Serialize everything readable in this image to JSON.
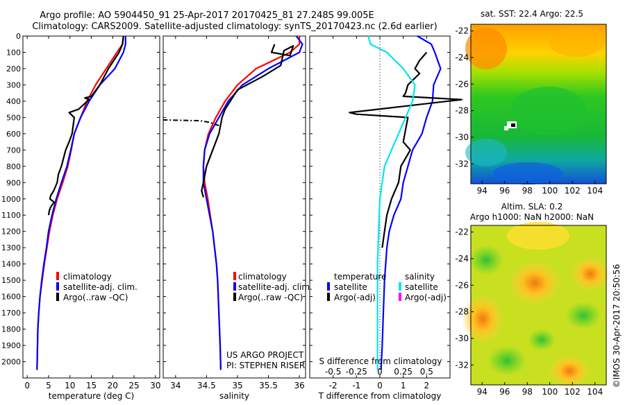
{
  "title_line1": "Argo profile: AO 5904450_91 25-Apr-2017 20170425_81 27.248S 99.005E",
  "title_line2": "Climatology: CARS2009. Satellite-adjusted climatology: synTS_20170423.nc (2.6d earlier)",
  "project_line1": "US ARGO PROJECT",
  "project_line2": "PI: STEPHEN RISER",
  "credit": "©IMOS 30-Apr-2017 20:50:56",
  "colors": {
    "climatology": "#ff0000",
    "satellite": "#0000ff",
    "argo": "#000000",
    "sal_satellite": "#00e5ee",
    "sal_argo": "#ff00ff"
  },
  "chart_data": [
    {
      "type": "line",
      "name": "temperature-profile",
      "xlabel": "temperature (deg C)",
      "xlim": [
        -1,
        31
      ],
      "ylim": [
        2100,
        0
      ],
      "xticks": [
        0,
        5,
        10,
        15,
        20,
        25,
        30
      ],
      "yticks": [
        0,
        100,
        200,
        300,
        400,
        500,
        600,
        700,
        800,
        900,
        1000,
        1100,
        1200,
        1300,
        1400,
        1500,
        1600,
        1700,
        1800,
        1900,
        2000
      ],
      "legend": [
        "climatology",
        "satellite-adj. clim.",
        "Argo(..raw -QC)"
      ],
      "series": [
        {
          "name": "climatology",
          "x": [
            22.5,
            22.3,
            21,
            18.5,
            16,
            14,
            12.5,
            11,
            10.3,
            9.5,
            8.3,
            7,
            6,
            5.2,
            4.6,
            4,
            3.5,
            3,
            2.7,
            2.5,
            2.3
          ],
          "y": [
            0,
            50,
            100,
            200,
            300,
            400,
            500,
            600,
            700,
            800,
            900,
            1000,
            1100,
            1200,
            1300,
            1400,
            1500,
            1600,
            1700,
            1800,
            2050
          ]
        },
        {
          "name": "satellite-adj. clim.",
          "x": [
            23,
            23,
            22.5,
            20.5,
            17,
            14.5,
            12.5,
            11,
            10.2,
            9.3,
            8,
            6.8,
            5.8,
            5,
            4.5,
            3.9,
            3.4,
            3,
            2.7,
            2.5,
            2.3
          ],
          "y": [
            0,
            50,
            100,
            200,
            300,
            400,
            500,
            600,
            700,
            800,
            900,
            1000,
            1100,
            1200,
            1300,
            1400,
            1500,
            1600,
            1700,
            1800,
            2050
          ]
        },
        {
          "name": "Argo(..raw -QC)",
          "x": [
            22.5,
            22.3,
            21.5,
            19,
            17,
            15,
            13.5,
            14.5,
            12,
            9.8,
            11,
            10.5,
            9.8,
            9,
            8,
            7.3,
            7,
            6.2,
            5.5,
            5.3,
            6.3,
            5.5,
            5.2,
            5
          ],
          "y": [
            0,
            50,
            100,
            200,
            300,
            370,
            380,
            390,
            450,
            470,
            500,
            600,
            650,
            700,
            800,
            850,
            900,
            950,
            980,
            1000,
            1020,
            1050,
            1070,
            1100
          ]
        }
      ]
    },
    {
      "type": "line",
      "name": "salinity-profile",
      "xlabel": "salinity",
      "xlim": [
        33.8,
        36.1
      ],
      "ylim": [
        2100,
        0
      ],
      "xticks": [
        34,
        34.5,
        35,
        35.5,
        36
      ],
      "legend": [
        "climatology",
        "satellite-adj. clim.",
        "Argo(..raw -QC)"
      ],
      "series": [
        {
          "name": "climatology",
          "x": [
            36,
            36,
            35.85,
            35.3,
            35,
            34.8,
            34.65,
            34.53,
            34.47,
            34.45,
            34.47,
            34.52,
            34.56,
            34.6,
            34.63,
            34.66,
            34.68,
            34.7,
            34.72,
            34.73
          ],
          "y": [
            0,
            50,
            100,
            200,
            300,
            400,
            500,
            600,
            700,
            800,
            900,
            1000,
            1100,
            1200,
            1300,
            1400,
            1500,
            1700,
            1900,
            2050
          ]
        },
        {
          "name": "satellite-adj. clim.",
          "x": [
            35.95,
            36.05,
            36,
            35.5,
            35.08,
            34.85,
            34.7,
            34.55,
            34.47,
            34.45,
            34.45,
            34.5,
            34.55,
            34.6,
            34.63,
            34.66,
            34.68,
            34.7,
            34.72,
            34.73
          ],
          "y": [
            0,
            50,
            100,
            200,
            300,
            400,
            500,
            600,
            700,
            800,
            900,
            1000,
            1100,
            1200,
            1300,
            1400,
            1500,
            1700,
            1900,
            2050
          ]
        },
        {
          "name": "Argo(..raw -QC)",
          "x": [
            35.6,
            35.55,
            35.85,
            35.9,
            35.75,
            35.7,
            35.4,
            35,
            34.8,
            34.75,
            34.7,
            34.6,
            34.5,
            34.45,
            34.42,
            34.45
          ],
          "y": [
            50,
            100,
            120,
            60,
            90,
            180,
            250,
            330,
            450,
            500,
            600,
            700,
            800,
            900,
            950,
            990
          ]
        },
        {
          "name": "Argo(..raw -QC) dashed",
          "x": [
            34.7,
            34.55,
            34.4,
            33.8
          ],
          "y": [
            550,
            530,
            520,
            515
          ]
        }
      ]
    },
    {
      "type": "line",
      "name": "difference-profile",
      "xlabel": "T difference from climatology",
      "x2label": "S difference from climatology",
      "xlim": [
        -3,
        3
      ],
      "ylim": [
        2100,
        0
      ],
      "xticks": [
        -2,
        -1,
        0,
        1,
        2
      ],
      "x2ticks": [
        "-0.5",
        "-0.25",
        "0",
        "0.25",
        "0.5"
      ],
      "legend_headers": [
        "temperature",
        "salinity"
      ],
      "legend": [
        "satellite",
        "Argo(-adj)",
        "satellite",
        "Argo(-adj)"
      ],
      "series": [
        {
          "name": "T satellite",
          "x": [
            1.6,
            2.2,
            2.35,
            2.6,
            2.3,
            2.25,
            2.0,
            1.8,
            1.4,
            1.2,
            1.0,
            0.9,
            0.6,
            0.4,
            0.3,
            0.25,
            0.2,
            0.15,
            0.1,
            0.05
          ],
          "y": [
            0,
            50,
            100,
            200,
            300,
            400,
            500,
            600,
            700,
            800,
            900,
            1000,
            1100,
            1200,
            1300,
            1400,
            1500,
            1700,
            1900,
            2050
          ]
        },
        {
          "name": "T Argo(-adj)",
          "x": [
            2.0,
            1.7,
            1.5,
            1.7,
            1.2,
            1.1,
            1.0,
            3.5,
            -1.3,
            -1.0,
            1.2,
            1.0,
            1.3,
            0.9,
            0.8,
            0.5,
            0.3,
            0.2,
            0.1
          ],
          "y": [
            100,
            150,
            200,
            230,
            300,
            350,
            370,
            390,
            470,
            480,
            500,
            650,
            700,
            800,
            900,
            1000,
            1100,
            1200,
            1300
          ]
        },
        {
          "name": "S satellite",
          "x": [
            -0.5,
            -0.4,
            0.3,
            1.0,
            1.5,
            1.4,
            1.1,
            0.8,
            0.5,
            0.2,
            0.0,
            -0.05,
            -0.1,
            -0.1,
            -0.1,
            -0.1,
            -0.1,
            -0.1,
            -0.1
          ],
          "y": [
            0,
            50,
            100,
            200,
            300,
            400,
            500,
            600,
            700,
            800,
            1000,
            1200,
            1400,
            1500,
            1600,
            1700,
            1800,
            1900,
            2050
          ]
        }
      ]
    },
    {
      "type": "heatmap",
      "name": "sst-map",
      "title": "sat. SST: 22.4  Argo: 22.5",
      "xlim": [
        93,
        105
      ],
      "ylim": [
        -33.5,
        -21.5
      ],
      "xticks": [
        94,
        96,
        98,
        100,
        102,
        104
      ],
      "yticks": [
        -22,
        -24,
        -26,
        -28,
        -30,
        -32
      ]
    },
    {
      "type": "heatmap",
      "name": "sla-map",
      "title_line1": "Altim. SLA: 0.2",
      "title_line2": "Argo h1000: NaN  h2000: NaN",
      "xlim": [
        93,
        105
      ],
      "ylim": [
        -33.5,
        -21.5
      ],
      "xticks": [
        94,
        96,
        98,
        100,
        102,
        104
      ],
      "yticks": [
        -22,
        -24,
        -26,
        -28,
        -30,
        -32
      ]
    }
  ]
}
